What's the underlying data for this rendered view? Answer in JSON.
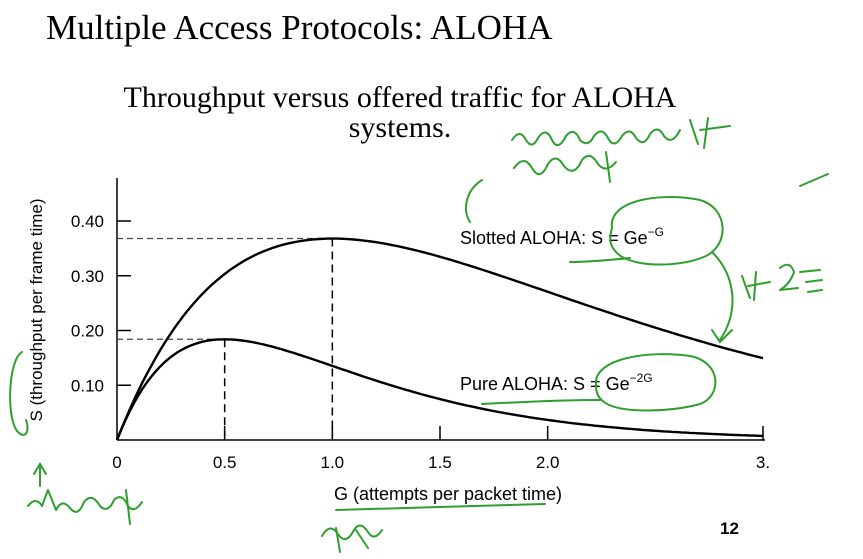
{
  "slide": {
    "title": "Multiple Access Protocols: ALOHA",
    "subtitle_line1": "Throughput versus offered traffic for ALOHA",
    "subtitle_line2": "systems.",
    "page_number": "12"
  },
  "chart_data": {
    "type": "line",
    "xlabel": "G (attempts per packet time)",
    "ylabel": "S (throughput per frame time)",
    "xlim": [
      0,
      3.0
    ],
    "ylim": [
      0,
      0.45
    ],
    "x_ticks": [
      0,
      0.5,
      1.0,
      1.5,
      2.0,
      3.0
    ],
    "x_tick_labels": [
      "0",
      "0.5",
      "1.0",
      "1.5",
      "2.0",
      "3."
    ],
    "y_ticks": [
      0.1,
      0.2,
      0.3,
      0.4
    ],
    "y_tick_labels": [
      "0.10",
      "0.20",
      "0.30",
      "0.40"
    ],
    "grid": false,
    "series": [
      {
        "name": "Slotted ALOHA",
        "label_text": "Slotted ALOHA: S = Ge",
        "label_exp": "−G",
        "formula_exponent_factor": 1,
        "peak": {
          "x": 1.0,
          "y": 0.368
        },
        "x": [
          0,
          0.1,
          0.2,
          0.3,
          0.4,
          0.5,
          0.6,
          0.7,
          0.8,
          0.9,
          1.0,
          1.2,
          1.4,
          1.6,
          1.8,
          2.0,
          2.2,
          2.4,
          2.6,
          2.8,
          3.0
        ],
        "values": [
          0,
          0.09,
          0.164,
          0.222,
          0.268,
          0.303,
          0.329,
          0.348,
          0.359,
          0.366,
          0.368,
          0.361,
          0.345,
          0.323,
          0.298,
          0.271,
          0.244,
          0.218,
          0.193,
          0.17,
          0.149
        ]
      },
      {
        "name": "Pure ALOHA",
        "label_text": "Pure ALOHA: S = Ge",
        "label_exp": "−2G",
        "formula_exponent_factor": 2,
        "peak": {
          "x": 0.5,
          "y": 0.184
        },
        "x": [
          0,
          0.1,
          0.2,
          0.3,
          0.4,
          0.5,
          0.6,
          0.7,
          0.8,
          0.9,
          1.0,
          1.2,
          1.4,
          1.6,
          1.8,
          2.0,
          2.2,
          2.4,
          2.6,
          2.8,
          3.0
        ],
        "values": [
          0,
          0.082,
          0.134,
          0.165,
          0.18,
          0.184,
          0.181,
          0.173,
          0.162,
          0.149,
          0.135,
          0.109,
          0.085,
          0.065,
          0.049,
          0.037,
          0.027,
          0.02,
          0.014,
          0.01,
          0.007
        ]
      }
    ]
  },
  "annotations": {
    "color": "#2e9e2e",
    "handwritten_notes": [
      "vulnerable time",
      "slot ×2",
      "throughput",
      "offered load"
    ]
  }
}
